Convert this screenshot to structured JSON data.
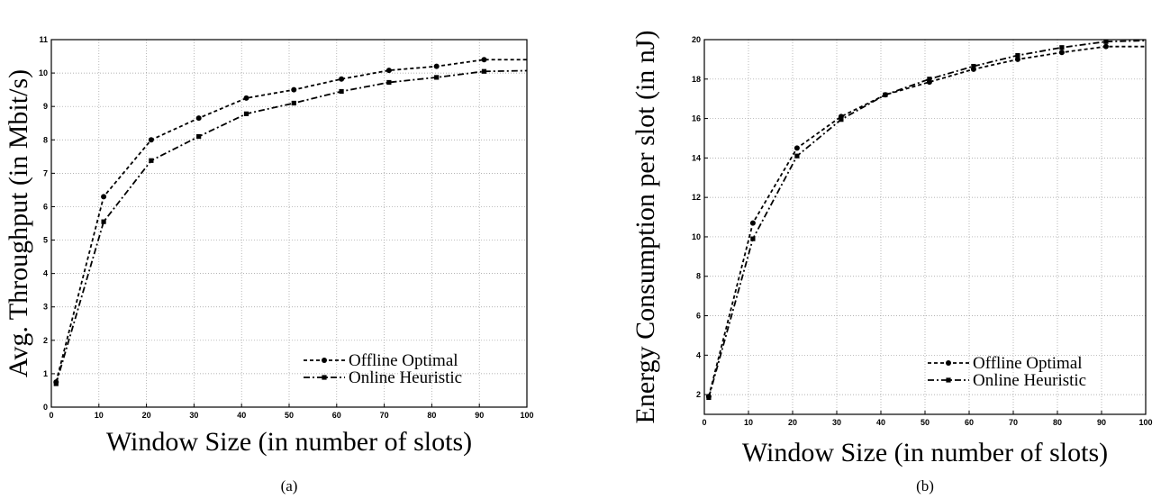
{
  "chart_data": [
    {
      "type": "line",
      "caption": "(a)",
      "xlabel": "Window Size (in number of slots)",
      "ylabel": "Avg. Throughput (in Mbit/s)",
      "xlim": [
        0,
        100
      ],
      "ylim": [
        0,
        11
      ],
      "xticks": [
        "0",
        "10",
        "20",
        "30",
        "40",
        "50",
        "60",
        "70",
        "80",
        "90",
        "100"
      ],
      "yticks": [
        "0",
        "1",
        "2",
        "3",
        "4",
        "5",
        "6",
        "7",
        "8",
        "9",
        "10",
        "11"
      ],
      "grid": true,
      "legend_position": "bottom-right",
      "series": [
        {
          "name": "Offline Optimal",
          "marker": "circle",
          "style": "dashed",
          "x": [
            1,
            11,
            21,
            31,
            41,
            51,
            61,
            71,
            81,
            91,
            100
          ],
          "y": [
            0.75,
            6.3,
            8.0,
            8.65,
            9.25,
            9.5,
            9.82,
            10.08,
            10.2,
            10.4,
            10.4
          ]
        },
        {
          "name": "Online Heuristic",
          "marker": "square",
          "style": "dashdot",
          "x": [
            1,
            11,
            21,
            31,
            41,
            51,
            61,
            71,
            81,
            91,
            100
          ],
          "y": [
            0.7,
            5.55,
            7.38,
            8.1,
            8.78,
            9.1,
            9.45,
            9.72,
            9.87,
            10.05,
            10.07
          ]
        }
      ]
    },
    {
      "type": "line",
      "caption": "(b)",
      "xlabel": "Window Size (in number of slots)",
      "ylabel": "Energy Consumption per slot (in nJ)",
      "xlim": [
        0,
        100
      ],
      "ylim": [
        1,
        20
      ],
      "xticks": [
        "0",
        "10",
        "20",
        "30",
        "40",
        "50",
        "60",
        "70",
        "80",
        "90",
        "100"
      ],
      "yticks": [
        "2",
        "4",
        "6",
        "8",
        "10",
        "12",
        "14",
        "16",
        "18",
        "20"
      ],
      "grid": true,
      "legend_position": "bottom-right",
      "series": [
        {
          "name": "Offline Optimal",
          "marker": "circle",
          "style": "dashed",
          "x": [
            1,
            11,
            21,
            31,
            41,
            51,
            61,
            71,
            81,
            91,
            100
          ],
          "y": [
            1.9,
            10.7,
            14.5,
            16.1,
            17.2,
            17.85,
            18.5,
            19.0,
            19.35,
            19.65,
            19.65
          ]
        },
        {
          "name": "Online Heuristic",
          "marker": "square",
          "style": "dashdot",
          "x": [
            1,
            11,
            21,
            31,
            41,
            51,
            61,
            71,
            81,
            91,
            100
          ],
          "y": [
            1.85,
            9.9,
            14.1,
            15.95,
            17.2,
            18.0,
            18.65,
            19.2,
            19.6,
            19.9,
            19.95
          ]
        }
      ]
    }
  ]
}
